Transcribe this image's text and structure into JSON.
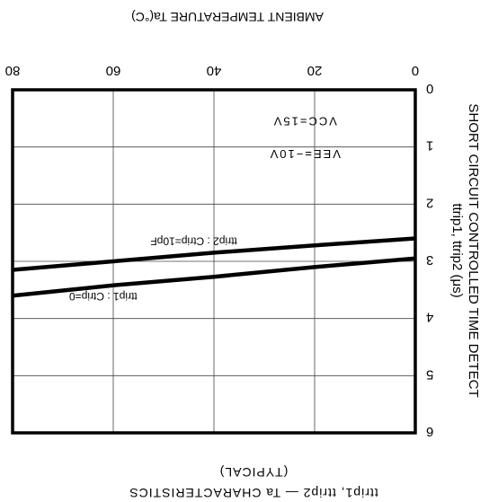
{
  "chart_data": {
    "type": "line",
    "orientation": "rotated-180",
    "title": "ttrip1, ttrip2 — Ta CHARACTERISTICS",
    "subtitle": "(TYPICAL)",
    "xlabel": "AMBIENT TEMPERATURE Ta(°C)",
    "ylabel_line1": "SHORT CIRCUIT CONTROLLED TIME DETECT",
    "ylabel_line2": "ttrip1, ttrip2 (μs)",
    "xlim": [
      0,
      80
    ],
    "ylim": [
      0,
      6
    ],
    "x_ticks": [
      "0",
      "20",
      "40",
      "60",
      "80"
    ],
    "y_ticks": [
      "0",
      "1",
      "2",
      "3",
      "4",
      "5",
      "6"
    ],
    "grid": true,
    "conditions": [
      "VCC=15V",
      "VEE=−10V"
    ],
    "series": [
      {
        "name": "ttrip1 : Ctrip=0",
        "x": [
          0,
          20,
          40,
          60,
          80
        ],
        "values": [
          2.6,
          2.72,
          2.85,
          3.0,
          3.15
        ]
      },
      {
        "name": "ttrip2 : Ctrip=10pF",
        "x": [
          0,
          20,
          40,
          60,
          80
        ],
        "values": [
          2.95,
          3.1,
          3.27,
          3.42,
          3.6
        ]
      }
    ]
  }
}
